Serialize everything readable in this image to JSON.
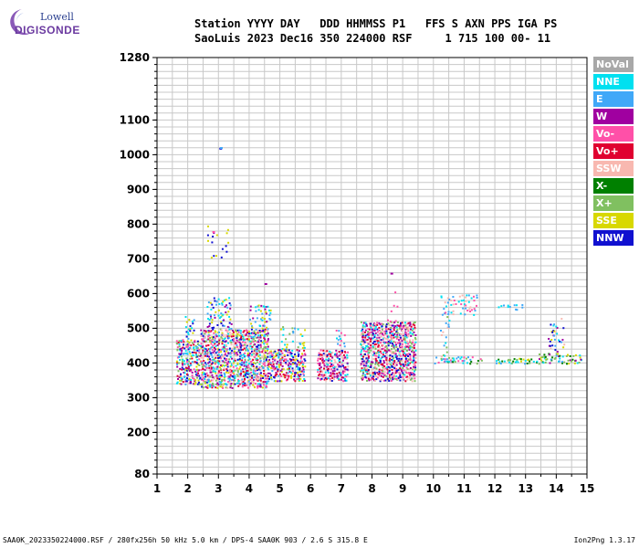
{
  "logo": {
    "line1": "Lowell",
    "line2": "DIGISONDE"
  },
  "header": {
    "line1": "Station YYYY DAY   DDD HHMMSS P1   FFS S AXN PPS IGA PS",
    "line2": "SaoLuis 2023 Dec16 350 224000 RSF     1 715 100 00- 11"
  },
  "legend": [
    {
      "label": "NoVal",
      "color": "#a8a8a8",
      "text_color": "#ffffff"
    },
    {
      "label": "NNE",
      "color": "#00e0f0",
      "text_color": "#ffffff"
    },
    {
      "label": "E",
      "color": "#40a8f8",
      "text_color": "#ffffff"
    },
    {
      "label": "W",
      "color": "#a000a0",
      "text_color": "#ffffff"
    },
    {
      "label": "Vo-",
      "color": "#ff50a8",
      "text_color": "#ffffff"
    },
    {
      "label": "Vo+",
      "color": "#e00030",
      "text_color": "#ffffff"
    },
    {
      "label": "SSW",
      "color": "#f8b8b0",
      "text_color": "#ffffff"
    },
    {
      "label": "X-",
      "color": "#008000",
      "text_color": "#ffffff"
    },
    {
      "label": "X+",
      "color": "#80c060",
      "text_color": "#ffffff"
    },
    {
      "label": "SSE",
      "color": "#d8d800",
      "text_color": "#ffffff"
    },
    {
      "label": "NNW",
      "color": "#1010d0",
      "text_color": "#ffffff"
    }
  ],
  "footer": {
    "left": "SAA0K_2023350224000.RSF / 280fx256h 50 kHz 5.0 km / DPS-4 SAA0K 903 / 2.6 S 315.8 E",
    "right": "Ion2Png 1.3.17"
  },
  "chart_data": {
    "type": "scatter",
    "title": "",
    "xlabel": "",
    "ylabel": "",
    "xlim": [
      1,
      15
    ],
    "ylim": [
      80,
      1280
    ],
    "xticks": [
      1,
      2,
      3,
      4,
      5,
      6,
      7,
      8,
      9,
      10,
      11,
      12,
      13,
      14,
      15
    ],
    "yticks": [
      80,
      200,
      300,
      400,
      500,
      600,
      700,
      800,
      900,
      1000,
      1100,
      1280
    ],
    "grid": true,
    "legend_position": "right",
    "clusters": [
      {
        "xmin": 1.6,
        "xmax": 2.4,
        "ymin": 340,
        "ymax": 470,
        "density": 0.75,
        "palette": [
          10,
          5,
          3,
          4,
          9,
          8,
          2,
          1
        ]
      },
      {
        "xmin": 1.9,
        "xmax": 2.2,
        "ymin": 470,
        "ymax": 540,
        "density": 0.3,
        "palette": [
          1,
          2,
          10,
          9
        ]
      },
      {
        "xmin": 2.4,
        "xmax": 4.6,
        "ymin": 330,
        "ymax": 500,
        "density": 0.85,
        "palette": [
          10,
          5,
          3,
          4,
          9,
          8,
          2,
          1,
          6
        ]
      },
      {
        "xmin": 2.6,
        "xmax": 3.4,
        "ymin": 500,
        "ymax": 590,
        "density": 0.35,
        "palette": [
          1,
          2,
          10,
          3,
          9
        ]
      },
      {
        "xmin": 4.0,
        "xmax": 4.7,
        "ymin": 500,
        "ymax": 570,
        "density": 0.3,
        "palette": [
          1,
          9,
          2,
          3
        ]
      },
      {
        "xmin": 2.6,
        "xmax": 3.4,
        "ymin": 700,
        "ymax": 800,
        "density": 0.06,
        "palette": [
          9,
          3,
          10
        ]
      },
      {
        "xmin": 4.6,
        "xmax": 5.8,
        "ymin": 350,
        "ymax": 440,
        "density": 0.75,
        "palette": [
          10,
          5,
          3,
          4,
          2,
          1,
          9
        ]
      },
      {
        "xmin": 5.0,
        "xmax": 5.8,
        "ymin": 440,
        "ymax": 510,
        "density": 0.25,
        "palette": [
          1,
          8,
          9,
          2
        ]
      },
      {
        "xmin": 6.2,
        "xmax": 7.2,
        "ymin": 350,
        "ymax": 440,
        "density": 0.75,
        "palette": [
          5,
          4,
          3,
          6,
          1,
          10
        ]
      },
      {
        "xmin": 6.8,
        "xmax": 7.1,
        "ymin": 440,
        "ymax": 500,
        "density": 0.3,
        "palette": [
          1,
          2,
          4
        ]
      },
      {
        "xmin": 7.6,
        "xmax": 9.4,
        "ymin": 350,
        "ymax": 520,
        "density": 0.85,
        "palette": [
          5,
          4,
          6,
          3,
          8,
          1,
          10
        ]
      },
      {
        "xmin": 8.4,
        "xmax": 8.8,
        "ymin": 520,
        "ymax": 610,
        "density": 0.08,
        "palette": [
          3,
          4
        ]
      },
      {
        "xmin": 10.0,
        "xmax": 11.6,
        "ymin": 400,
        "ymax": 420,
        "density": 0.6,
        "palette": [
          7,
          8,
          1,
          2,
          4
        ]
      },
      {
        "xmin": 10.2,
        "xmax": 11.4,
        "ymin": 540,
        "ymax": 600,
        "density": 0.25,
        "palette": [
          6,
          1,
          2,
          4
        ]
      },
      {
        "xmin": 10.2,
        "xmax": 10.5,
        "ymin": 420,
        "ymax": 540,
        "density": 0.15,
        "palette": [
          1,
          6,
          8,
          2
        ]
      },
      {
        "xmin": 12.0,
        "xmax": 13.4,
        "ymin": 400,
        "ymax": 415,
        "density": 0.55,
        "palette": [
          7,
          8,
          9,
          1,
          2
        ]
      },
      {
        "xmin": 12.1,
        "xmax": 13.0,
        "ymin": 555,
        "ymax": 570,
        "density": 0.3,
        "palette": [
          2,
          1
        ]
      },
      {
        "xmin": 13.4,
        "xmax": 14.8,
        "ymin": 400,
        "ymax": 430,
        "density": 0.55,
        "palette": [
          7,
          8,
          9,
          2,
          1,
          3
        ]
      },
      {
        "xmin": 13.7,
        "xmax": 14.3,
        "ymin": 430,
        "ymax": 530,
        "density": 0.2,
        "palette": [
          9,
          1,
          2,
          10,
          3,
          6
        ]
      }
    ],
    "points": [
      {
        "x": 3.03,
        "y": 1020,
        "c": 10
      },
      {
        "x": 3.05,
        "y": 1022,
        "c": 2
      },
      {
        "x": 8.6,
        "y": 660,
        "c": 3
      },
      {
        "x": 4.5,
        "y": 630,
        "c": 3
      },
      {
        "x": 2.8,
        "y": 780,
        "c": 4
      }
    ]
  }
}
